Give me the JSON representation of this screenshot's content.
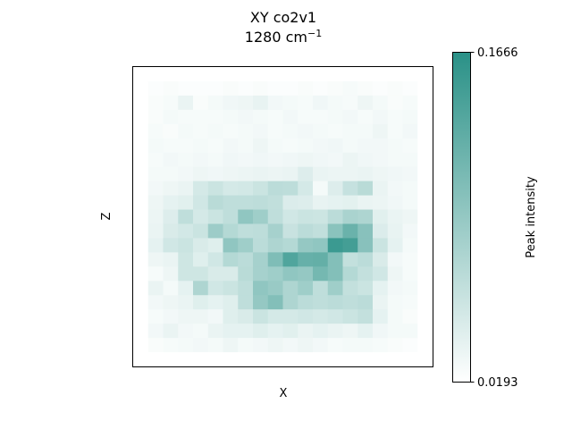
{
  "chart_data": {
    "type": "heatmap",
    "title": "XY co2v1",
    "subtitle_prefix": "1280 cm",
    "subtitle_superscript": "−1",
    "xlabel": "X",
    "ylabel": "Z",
    "colorbar": {
      "label": "Peak intensity",
      "min": 0.0193,
      "max": 0.1666,
      "min_label": "0.0193",
      "max_label": "0.1666",
      "color_low": "#ffffff",
      "color_high": "#2a9187"
    },
    "grid": false,
    "values": [
      [
        0,
        0,
        0,
        0,
        0,
        0,
        0,
        0,
        0,
        0,
        0,
        0,
        0,
        0,
        0,
        0,
        0,
        0,
        0,
        0
      ],
      [
        0,
        0.02,
        0.03,
        0.02,
        0.02,
        0.02,
        0.03,
        0.02,
        0.03,
        0.02,
        0.02,
        0.03,
        0.02,
        0.03,
        0.04,
        0.03,
        0.02,
        0.03,
        0.02,
        0
      ],
      [
        0,
        0.03,
        0.04,
        0.1,
        0.03,
        0.05,
        0.07,
        0.08,
        0.11,
        0.06,
        0.05,
        0.04,
        0.07,
        0.05,
        0.04,
        0.08,
        0.05,
        0.03,
        0.04,
        0
      ],
      [
        0,
        0.03,
        0.05,
        0.04,
        0.04,
        0.04,
        0.05,
        0.06,
        0.05,
        0.04,
        0.06,
        0.04,
        0.04,
        0.05,
        0.06,
        0.04,
        0.06,
        0.04,
        0.05,
        0
      ],
      [
        0,
        0.04,
        0.03,
        0.05,
        0.04,
        0.05,
        0.04,
        0.05,
        0.06,
        0.04,
        0.05,
        0.06,
        0.05,
        0.04,
        0.05,
        0.05,
        0.08,
        0.04,
        0.06,
        0
      ],
      [
        0,
        0.05,
        0.04,
        0.04,
        0.05,
        0.04,
        0.06,
        0.05,
        0.08,
        0.05,
        0.04,
        0.05,
        0.06,
        0.07,
        0.05,
        0.06,
        0.06,
        0.05,
        0.04,
        0
      ],
      [
        0,
        0.04,
        0.06,
        0.05,
        0.06,
        0.05,
        0.07,
        0.06,
        0.07,
        0.06,
        0.07,
        0.08,
        0.07,
        0.06,
        0.09,
        0.07,
        0.06,
        0.05,
        0.05,
        0
      ],
      [
        0,
        0.05,
        0.05,
        0.06,
        0.08,
        0.07,
        0.08,
        0.09,
        0.1,
        0.09,
        0.1,
        0.16,
        0.1,
        0.09,
        0.09,
        0.1,
        0.08,
        0.07,
        0.06,
        0
      ],
      [
        0,
        0.06,
        0.08,
        0.1,
        0.2,
        0.25,
        0.2,
        0.21,
        0.25,
        0.32,
        0.31,
        0.2,
        0.05,
        0.16,
        0.27,
        0.33,
        0.1,
        0.06,
        0.05,
        0
      ],
      [
        0,
        0.08,
        0.12,
        0.14,
        0.22,
        0.33,
        0.3,
        0.3,
        0.31,
        0.29,
        0.17,
        0.16,
        0.11,
        0.12,
        0.13,
        0.1,
        0.09,
        0.07,
        0.05,
        0
      ],
      [
        0,
        0.09,
        0.16,
        0.3,
        0.2,
        0.25,
        0.3,
        0.52,
        0.45,
        0.3,
        0.22,
        0.25,
        0.24,
        0.32,
        0.4,
        0.38,
        0.14,
        0.1,
        0.08,
        0
      ],
      [
        0,
        0.1,
        0.18,
        0.21,
        0.25,
        0.46,
        0.35,
        0.3,
        0.31,
        0.42,
        0.26,
        0.32,
        0.29,
        0.55,
        0.7,
        0.56,
        0.17,
        0.11,
        0.06,
        0
      ],
      [
        0,
        0.12,
        0.22,
        0.25,
        0.18,
        0.15,
        0.52,
        0.45,
        0.32,
        0.38,
        0.35,
        0.5,
        0.52,
        0.92,
        0.88,
        0.56,
        0.25,
        0.12,
        0.05,
        0
      ],
      [
        0,
        0.08,
        0.1,
        0.23,
        0.15,
        0.22,
        0.35,
        0.32,
        0.42,
        0.6,
        0.82,
        0.72,
        0.73,
        0.58,
        0.28,
        0.32,
        0.18,
        0.06,
        0.04,
        0
      ],
      [
        0,
        0.04,
        0.08,
        0.23,
        0.23,
        0.18,
        0.18,
        0.33,
        0.42,
        0.45,
        0.52,
        0.5,
        0.65,
        0.58,
        0.35,
        0.28,
        0.22,
        0.08,
        0.04,
        0
      ],
      [
        0,
        0.1,
        0.05,
        0.12,
        0.38,
        0.22,
        0.25,
        0.3,
        0.52,
        0.48,
        0.38,
        0.45,
        0.3,
        0.45,
        0.28,
        0.25,
        0.12,
        0.06,
        0.05,
        0
      ],
      [
        0,
        0.06,
        0.08,
        0.1,
        0.15,
        0.12,
        0.15,
        0.3,
        0.5,
        0.58,
        0.38,
        0.32,
        0.3,
        0.32,
        0.3,
        0.32,
        0.1,
        0.05,
        0.04,
        0
      ],
      [
        0,
        0.04,
        0.06,
        0.08,
        0.08,
        0.06,
        0.15,
        0.18,
        0.25,
        0.2,
        0.2,
        0.22,
        0.2,
        0.22,
        0.25,
        0.28,
        0.12,
        0.05,
        0.03,
        0
      ],
      [
        0,
        0.06,
        0.1,
        0.06,
        0.05,
        0.1,
        0.12,
        0.12,
        0.15,
        0.12,
        0.14,
        0.1,
        0.12,
        0.1,
        0.08,
        0.12,
        0.07,
        0.05,
        0.05,
        0
      ],
      [
        0,
        0.03,
        0.04,
        0.05,
        0.06,
        0.05,
        0.08,
        0.05,
        0.06,
        0.08,
        0.06,
        0.08,
        0.06,
        0.04,
        0.05,
        0.05,
        0.04,
        0.03,
        0.02,
        0
      ],
      [
        0,
        0,
        0,
        0,
        0,
        0,
        0,
        0,
        0,
        0,
        0,
        0,
        0,
        0,
        0,
        0,
        0,
        0,
        0,
        0
      ]
    ]
  }
}
